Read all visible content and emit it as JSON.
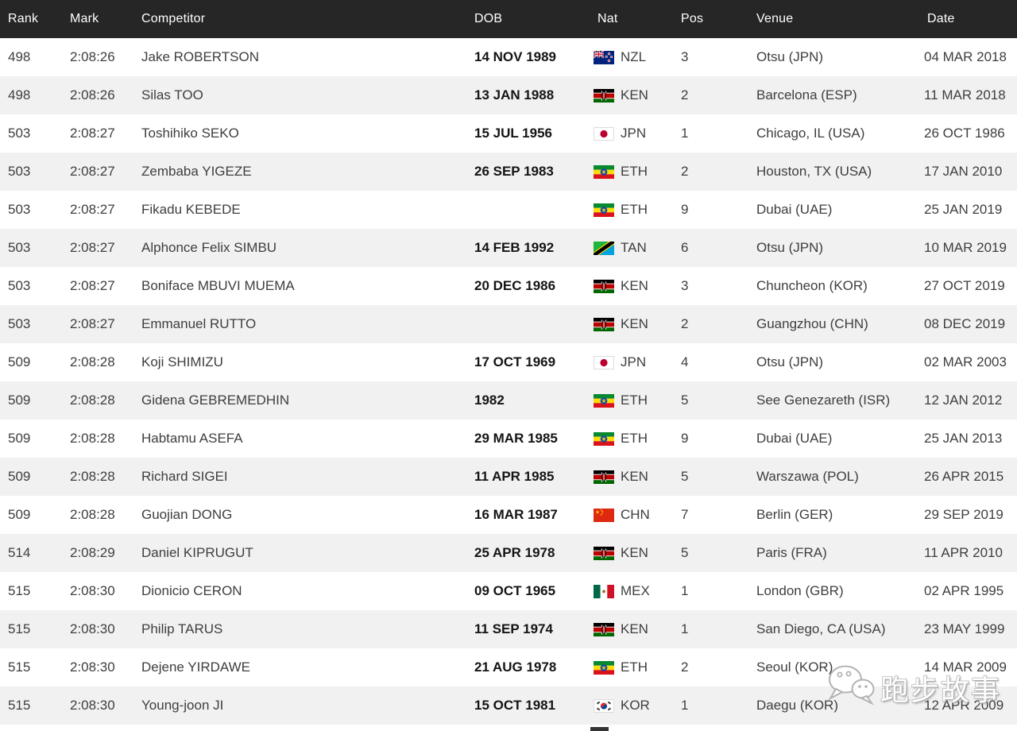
{
  "table": {
    "columns": [
      "Rank",
      "Mark",
      "Competitor",
      "DOB",
      "Nat",
      "Pos",
      "Venue",
      "Date"
    ],
    "rows": [
      {
        "rank": "498",
        "mark": "2:08:26",
        "competitor": "Jake ROBERTSON",
        "dob": "14 NOV 1989",
        "nat": "NZL",
        "pos": "3",
        "venue": "Otsu (JPN)",
        "date": "04 MAR 2018"
      },
      {
        "rank": "498",
        "mark": "2:08:26",
        "competitor": "Silas TOO",
        "dob": "13 JAN 1988",
        "nat": "KEN",
        "pos": "2",
        "venue": "Barcelona (ESP)",
        "date": "11 MAR 2018"
      },
      {
        "rank": "503",
        "mark": "2:08:27",
        "competitor": "Toshihiko SEKO",
        "dob": "15 JUL 1956",
        "nat": "JPN",
        "pos": "1",
        "venue": "Chicago, IL (USA)",
        "date": "26 OCT 1986"
      },
      {
        "rank": "503",
        "mark": "2:08:27",
        "competitor": "Zembaba YIGEZE",
        "dob": "26 SEP 1983",
        "nat": "ETH",
        "pos": "2",
        "venue": "Houston, TX (USA)",
        "date": "17 JAN 2010"
      },
      {
        "rank": "503",
        "mark": "2:08:27",
        "competitor": "Fikadu KEBEDE",
        "dob": "",
        "nat": "ETH",
        "pos": "9",
        "venue": "Dubai (UAE)",
        "date": "25 JAN 2019"
      },
      {
        "rank": "503",
        "mark": "2:08:27",
        "competitor": "Alphonce Felix SIMBU",
        "dob": "14 FEB 1992",
        "nat": "TAN",
        "pos": "6",
        "venue": "Otsu (JPN)",
        "date": "10 MAR 2019"
      },
      {
        "rank": "503",
        "mark": "2:08:27",
        "competitor": "Boniface MBUVI MUEMA",
        "dob": "20 DEC 1986",
        "nat": "KEN",
        "pos": "3",
        "venue": "Chuncheon (KOR)",
        "date": "27 OCT 2019"
      },
      {
        "rank": "503",
        "mark": "2:08:27",
        "competitor": "Emmanuel RUTTO",
        "dob": "",
        "nat": "KEN",
        "pos": "2",
        "venue": "Guangzhou (CHN)",
        "date": "08 DEC 2019"
      },
      {
        "rank": "509",
        "mark": "2:08:28",
        "competitor": "Koji SHIMIZU",
        "dob": "17 OCT 1969",
        "nat": "JPN",
        "pos": "4",
        "venue": "Otsu (JPN)",
        "date": "02 MAR 2003"
      },
      {
        "rank": "509",
        "mark": "2:08:28",
        "competitor": "Gidena GEBREMEDHIN",
        "dob": "1982",
        "nat": "ETH",
        "pos": "5",
        "venue": "See Genezareth (ISR)",
        "date": "12 JAN 2012"
      },
      {
        "rank": "509",
        "mark": "2:08:28",
        "competitor": "Habtamu ASEFA",
        "dob": "29 MAR 1985",
        "nat": "ETH",
        "pos": "9",
        "venue": "Dubai (UAE)",
        "date": "25 JAN 2013"
      },
      {
        "rank": "509",
        "mark": "2:08:28",
        "competitor": "Richard SIGEI",
        "dob": "11 APR 1985",
        "nat": "KEN",
        "pos": "5",
        "venue": "Warszawa (POL)",
        "date": "26 APR 2015"
      },
      {
        "rank": "509",
        "mark": "2:08:28",
        "competitor": "Guojian DONG",
        "dob": "16 MAR 1987",
        "nat": "CHN",
        "pos": "7",
        "venue": "Berlin (GER)",
        "date": "29 SEP 2019"
      },
      {
        "rank": "514",
        "mark": "2:08:29",
        "competitor": "Daniel KIPRUGUT",
        "dob": "25 APR 1978",
        "nat": "KEN",
        "pos": "5",
        "venue": "Paris (FRA)",
        "date": "11 APR 2010"
      },
      {
        "rank": "515",
        "mark": "2:08:30",
        "competitor": "Dionicio CERON",
        "dob": "09 OCT 1965",
        "nat": "MEX",
        "pos": "1",
        "venue": "London (GBR)",
        "date": "02 APR 1995"
      },
      {
        "rank": "515",
        "mark": "2:08:30",
        "competitor": "Philip TARUS",
        "dob": "11 SEP 1974",
        "nat": "KEN",
        "pos": "1",
        "venue": "San Diego, CA (USA)",
        "date": "23 MAY 1999"
      },
      {
        "rank": "515",
        "mark": "2:08:30",
        "competitor": "Dejene YIRDAWE",
        "dob": "21 AUG 1978",
        "nat": "ETH",
        "pos": "2",
        "venue": "Seoul (KOR)",
        "date": "14 MAR 2009"
      },
      {
        "rank": "515",
        "mark": "2:08:30",
        "competitor": "Young-joon JI",
        "dob": "15 OCT 1981",
        "nat": "KOR",
        "pos": "1",
        "venue": "Daegu (KOR)",
        "date": "12 APR 2009"
      }
    ]
  },
  "watermark": {
    "text": "跑步故事",
    "logo": "wechat-chat-bubbles-icon"
  },
  "colors": {
    "header_bg": "#262626",
    "header_text": "#ffffff",
    "row_bg": "#ffffff",
    "row_alt_bg": "#f1f1f1",
    "body_text": "#3e3e3e",
    "dob_text": "#141414"
  }
}
